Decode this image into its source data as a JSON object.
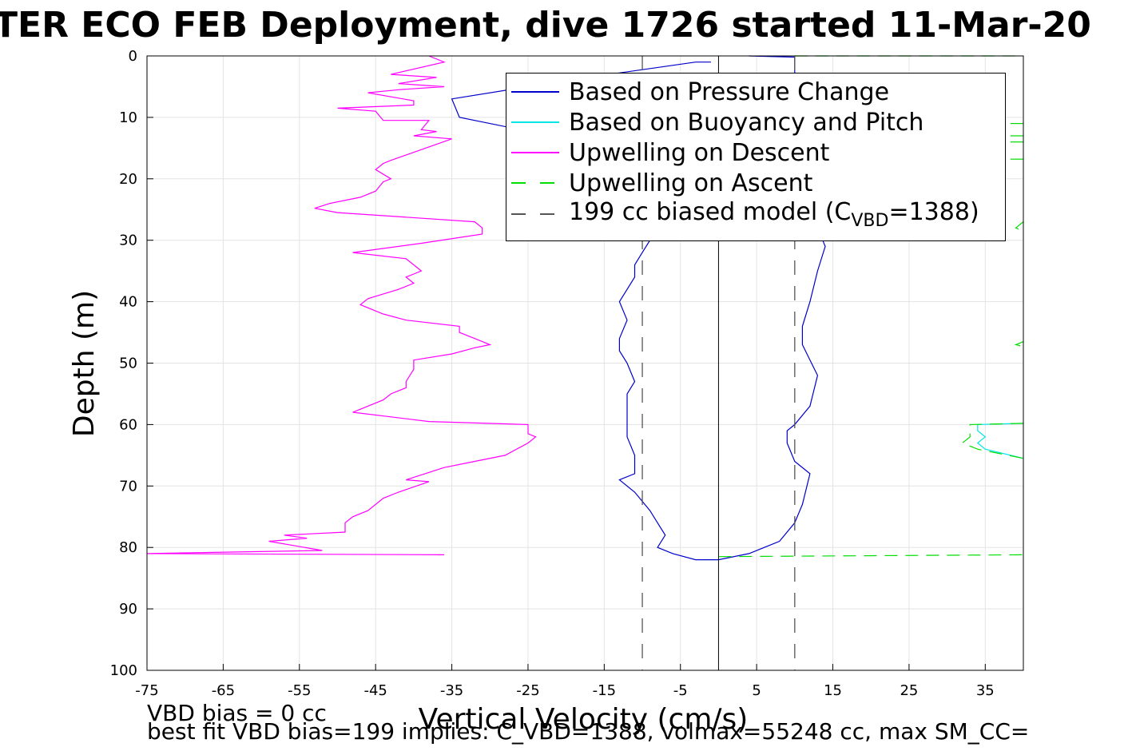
{
  "title": "TER ECO FEB Deployment, dive 1726 started 11-Mar-20",
  "footnotes": {
    "line1": "VBD bias = 0 cc",
    "line2": "best fit VBD bias=199 implies: C_VBD=1388, volmax=55248 cc, max SM_CC="
  },
  "legend": {
    "items": [
      {
        "label": "Based on Pressure Change",
        "color": "#0000cc",
        "dashed": false
      },
      {
        "label": "Based on Buoyancy and Pitch",
        "color": "#00e6e6",
        "dashed": false
      },
      {
        "label": "Upwelling on Descent",
        "color": "#ff00ff",
        "dashed": false
      },
      {
        "label": "Upwelling on Ascent",
        "color": "#00dd00",
        "dashed": true
      },
      {
        "label_prefix": "199 cc biased model (C",
        "label_sub": "VBD",
        "label_suffix": "=1388)",
        "color": "#555555",
        "dashed": true
      }
    ]
  },
  "chart_data": {
    "type": "line",
    "title": "TER ECO FEB Deployment, dive 1726 started 11-Mar-20",
    "xlabel": "Vertical Velocity (cm/s)",
    "ylabel": "Depth (m)",
    "xlim": [
      -75,
      40
    ],
    "ylim": [
      0,
      100
    ],
    "y_reversed": true,
    "grid": true,
    "legend_position": "top-right",
    "x_ticks": [
      -75,
      -65,
      -55,
      -45,
      -35,
      -25,
      -15,
      -5,
      5,
      15,
      25,
      35
    ],
    "y_ticks": [
      0,
      10,
      20,
      30,
      40,
      50,
      60,
      70,
      80,
      90,
      100
    ],
    "series": [
      {
        "name": "Based on Pressure Change",
        "color": "#0000cc",
        "points": [
          [
            -1,
            1
          ],
          [
            -3,
            1
          ],
          [
            -20,
            4
          ],
          [
            -35,
            7
          ],
          [
            -34,
            10
          ],
          [
            -22,
            13
          ],
          [
            -14,
            15
          ],
          [
            -12,
            18
          ],
          [
            -11,
            22
          ],
          [
            -11,
            26
          ],
          [
            -10,
            29
          ],
          [
            -9,
            30
          ],
          [
            -10,
            32
          ],
          [
            -11,
            34
          ],
          [
            -11,
            36
          ],
          [
            -12,
            38
          ],
          [
            -13,
            40
          ],
          [
            -12,
            43
          ],
          [
            -13,
            46
          ],
          [
            -13,
            48
          ],
          [
            -12,
            50
          ],
          [
            -11,
            53
          ],
          [
            -12,
            55
          ],
          [
            -12,
            58
          ],
          [
            -12,
            62
          ],
          [
            -11,
            65
          ],
          [
            -11,
            68
          ],
          [
            -13,
            69
          ],
          [
            -11,
            71
          ],
          [
            -9,
            74
          ],
          [
            -8,
            76
          ],
          [
            -7,
            78
          ],
          [
            -8,
            80
          ],
          [
            -6,
            81
          ],
          [
            -3,
            82
          ],
          [
            0,
            82
          ],
          [
            4,
            81
          ],
          [
            6,
            80
          ],
          [
            8,
            79
          ],
          [
            10,
            76
          ],
          [
            11,
            73
          ],
          [
            12,
            68
          ],
          [
            10,
            66
          ],
          [
            9,
            63
          ],
          [
            9,
            61
          ],
          [
            10,
            60
          ],
          [
            12,
            57
          ],
          [
            13,
            52
          ],
          [
            11,
            47
          ],
          [
            11,
            44
          ],
          [
            12,
            40
          ],
          [
            13,
            35
          ],
          [
            14,
            31
          ],
          [
            13,
            28
          ],
          [
            12,
            24
          ],
          [
            12,
            20
          ],
          [
            11,
            15
          ],
          [
            11,
            10
          ],
          [
            10,
            5
          ],
          [
            10,
            0.2
          ],
          [
            4,
            0
          ]
        ]
      },
      {
        "name": "Based on Buoyancy and Pitch",
        "color": "#00e6e6",
        "points": [
          [
            40,
            59.8
          ],
          [
            34,
            60
          ],
          [
            34,
            61
          ],
          [
            35,
            62
          ],
          [
            34,
            63
          ],
          [
            35,
            64
          ],
          [
            40,
            65.5
          ]
        ]
      },
      {
        "name": "Upwelling on Descent",
        "color": "#ff00ff",
        "points": [
          [
            -38,
            0
          ],
          [
            -36,
            1
          ],
          [
            -43,
            3
          ],
          [
            -37,
            3.5
          ],
          [
            -42,
            4.5
          ],
          [
            -36,
            5
          ],
          [
            -42,
            5.5
          ],
          [
            -46,
            6
          ],
          [
            -40,
            7.3
          ],
          [
            -40,
            8
          ],
          [
            -50,
            8.5
          ],
          [
            -45,
            9
          ],
          [
            -44,
            10.5
          ],
          [
            -38,
            10.5
          ],
          [
            -39,
            12
          ],
          [
            -37,
            12.3
          ],
          [
            -40,
            13
          ],
          [
            -35,
            13.5
          ],
          [
            -43,
            17
          ],
          [
            -44,
            17.5
          ],
          [
            -45,
            18.5
          ],
          [
            -43,
            20
          ],
          [
            -44,
            20.5
          ],
          [
            -45,
            22
          ],
          [
            -47,
            23
          ],
          [
            -51,
            24
          ],
          [
            -53,
            24.8
          ],
          [
            -50,
            25.5
          ],
          [
            -32,
            27
          ],
          [
            -31,
            28
          ],
          [
            -31,
            29
          ],
          [
            -39,
            30.5
          ],
          [
            -48,
            32
          ],
          [
            -41,
            33
          ],
          [
            -40,
            34
          ],
          [
            -39,
            35
          ],
          [
            -40,
            35.5
          ],
          [
            -41,
            36
          ],
          [
            -40,
            37
          ],
          [
            -42,
            38
          ],
          [
            -46,
            39.5
          ],
          [
            -47,
            40.5
          ],
          [
            -44,
            42
          ],
          [
            -41,
            43
          ],
          [
            -34,
            44
          ],
          [
            -34,
            45
          ],
          [
            -32,
            46
          ],
          [
            -30,
            47
          ],
          [
            -32,
            47.5
          ],
          [
            -35,
            48.5
          ],
          [
            -40,
            49.5
          ],
          [
            -40,
            51
          ],
          [
            -41,
            53
          ],
          [
            -41,
            54
          ],
          [
            -43,
            55
          ],
          [
            -44,
            56
          ],
          [
            -47,
            57.5
          ],
          [
            -48,
            58
          ],
          [
            -38,
            59.5
          ],
          [
            -25,
            60
          ],
          [
            -25,
            61.5
          ],
          [
            -24,
            62
          ],
          [
            -25,
            63
          ],
          [
            -28,
            65
          ],
          [
            -32,
            66
          ],
          [
            -36,
            67
          ],
          [
            -41,
            69
          ],
          [
            -38,
            69.3
          ],
          [
            -42,
            71
          ],
          [
            -44,
            72
          ],
          [
            -46,
            74
          ],
          [
            -48,
            75
          ],
          [
            -49,
            76
          ],
          [
            -49,
            77.5
          ],
          [
            -57,
            78
          ],
          [
            -54,
            78.5
          ],
          [
            -59,
            79
          ],
          [
            -52,
            80.5
          ],
          [
            -75,
            81
          ],
          [
            -36,
            81.2
          ]
        ]
      },
      {
        "name": "Upwelling on Ascent",
        "color": "#00dd00",
        "dashed": true,
        "segments": [
          [
            [
              10,
              0
            ],
            [
              40,
              0
            ]
          ],
          [
            [
              0,
              81.5
            ],
            [
              40,
              81.2
            ]
          ],
          [
            [
              40,
              59.8
            ],
            [
              33,
              60
            ],
            [
              33,
              62
            ],
            [
              32,
              63
            ],
            [
              34,
              64
            ],
            [
              40,
              65.5
            ]
          ],
          [
            [
              40,
              11
            ],
            [
              38,
              11
            ]
          ],
          [
            [
              40,
              13
            ],
            [
              38,
              13
            ]
          ],
          [
            [
              40,
              14
            ],
            [
              38,
              14
            ]
          ],
          [
            [
              40,
              16.8
            ],
            [
              38,
              16.8
            ]
          ],
          [
            [
              40,
              27
            ],
            [
              39,
              28
            ],
            [
              40,
              28.5
            ]
          ],
          [
            [
              40,
              46.5
            ],
            [
              39,
              47
            ],
            [
              40,
              47.3
            ]
          ]
        ]
      },
      {
        "name": "199 cc biased model (C_VBD=1388)",
        "color": "#555555",
        "dashed": true,
        "vertical_lines_at_x": [
          -10,
          10
        ]
      }
    ],
    "reference_line": {
      "x": 0,
      "color": "#000000"
    }
  }
}
